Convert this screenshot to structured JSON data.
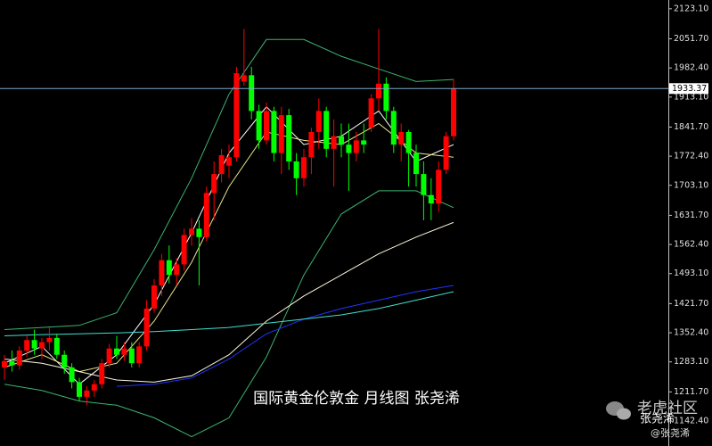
{
  "chart_data": {
    "type": "candlestick",
    "caption": "国际黄金伦敦金 月线图 张尧浠",
    "watermark": "老虎社区",
    "watermark_name": "张尧浠",
    "watermark_handle": "@张尧浠",
    "last_price": 1933.37,
    "up_color": "#ff0000",
    "down_color": "#00ff00",
    "ylim": [
      1083,
      2144
    ],
    "yticks": [
      {
        "value": 2123.1,
        "label": "2123.10"
      },
      {
        "value": 2051.7,
        "label": "2051.70"
      },
      {
        "value": 1982.4,
        "label": "1982.40"
      },
      {
        "value": 1913.1,
        "label": "1913.10"
      },
      {
        "value": 1841.7,
        "label": "1841.70"
      },
      {
        "value": 1772.4,
        "label": "1772.40"
      },
      {
        "value": 1703.1,
        "label": "1703.10"
      },
      {
        "value": 1631.7,
        "label": "1631.70"
      },
      {
        "value": 1562.4,
        "label": "1562.40"
      },
      {
        "value": 1493.1,
        "label": "1493.10"
      },
      {
        "value": 1421.7,
        "label": "1421.70"
      },
      {
        "value": 1352.4,
        "label": "1352.40"
      },
      {
        "value": 1283.1,
        "label": "1283.10"
      },
      {
        "value": 1211.7,
        "label": "1211.70"
      },
      {
        "value": 1142.4,
        "label": "1142.40"
      }
    ],
    "candles": [
      [
        1270,
        1300,
        1240,
        1285
      ],
      [
        1285,
        1310,
        1260,
        1275
      ],
      [
        1275,
        1320,
        1265,
        1310
      ],
      [
        1310,
        1345,
        1295,
        1335
      ],
      [
        1335,
        1360,
        1300,
        1315
      ],
      [
        1315,
        1340,
        1290,
        1330
      ],
      [
        1330,
        1365,
        1310,
        1340
      ],
      [
        1340,
        1350,
        1290,
        1300
      ],
      [
        1300,
        1310,
        1255,
        1270
      ],
      [
        1270,
        1280,
        1220,
        1235
      ],
      [
        1235,
        1245,
        1190,
        1200
      ],
      [
        1200,
        1225,
        1180,
        1215
      ],
      [
        1215,
        1240,
        1200,
        1230
      ],
      [
        1230,
        1290,
        1220,
        1280
      ],
      [
        1280,
        1325,
        1270,
        1315
      ],
      [
        1315,
        1345,
        1290,
        1300
      ],
      [
        1300,
        1330,
        1285,
        1315
      ],
      [
        1315,
        1330,
        1270,
        1280
      ],
      [
        1280,
        1330,
        1270,
        1320
      ],
      [
        1320,
        1430,
        1310,
        1410
      ],
      [
        1410,
        1480,
        1400,
        1465
      ],
      [
        1465,
        1540,
        1440,
        1525
      ],
      [
        1525,
        1560,
        1470,
        1490
      ],
      [
        1490,
        1530,
        1465,
        1515
      ],
      [
        1515,
        1600,
        1500,
        1585
      ],
      [
        1585,
        1625,
        1560,
        1600
      ],
      [
        1600,
        1620,
        1465,
        1580
      ],
      [
        1580,
        1700,
        1570,
        1685
      ],
      [
        1685,
        1760,
        1620,
        1730
      ],
      [
        1730,
        1790,
        1710,
        1775
      ],
      [
        1750,
        1800,
        1720,
        1770
      ],
      [
        1770,
        1985,
        1760,
        1970
      ],
      [
        1950,
        2075,
        1940,
        1965
      ],
      [
        1965,
        1985,
        1860,
        1880
      ],
      [
        1880,
        1895,
        1790,
        1810
      ],
      [
        1810,
        1900,
        1800,
        1880
      ],
      [
        1880,
        1890,
        1760,
        1780
      ],
      [
        1780,
        1890,
        1730,
        1870
      ],
      [
        1870,
        1885,
        1740,
        1760
      ],
      [
        1760,
        1780,
        1680,
        1720
      ],
      [
        1720,
        1790,
        1700,
        1770
      ],
      [
        1770,
        1840,
        1730,
        1830
      ],
      [
        1830,
        1910,
        1790,
        1880
      ],
      [
        1880,
        1890,
        1770,
        1790
      ],
      [
        1790,
        1860,
        1700,
        1820
      ],
      [
        1820,
        1850,
        1770,
        1800
      ],
      [
        1800,
        1850,
        1690,
        1780
      ],
      [
        1780,
        1830,
        1760,
        1810
      ],
      [
        1810,
        1850,
        1780,
        1800
      ],
      [
        1840,
        1920,
        1830,
        1910
      ],
      [
        1910,
        2075,
        1880,
        1945
      ],
      [
        1945,
        1960,
        1860,
        1880
      ],
      [
        1880,
        1890,
        1780,
        1800
      ],
      [
        1800,
        1850,
        1760,
        1830
      ],
      [
        1830,
        1835,
        1700,
        1780
      ],
      [
        1780,
        1800,
        1700,
        1730
      ],
      [
        1730,
        1760,
        1620,
        1680
      ],
      [
        1680,
        1720,
        1620,
        1660
      ],
      [
        1660,
        1760,
        1640,
        1740
      ],
      [
        1740,
        1830,
        1730,
        1820
      ],
      [
        1820,
        1955,
        1810,
        1933.37
      ]
    ],
    "overlays": [
      {
        "color": "#3cb371",
        "x": [
          0,
          5,
          10,
          15,
          20,
          25,
          30,
          35,
          40,
          45,
          50,
          55,
          60
        ],
        "values": [
          1360,
          1365,
          1370,
          1400,
          1550,
          1720,
          1920,
          2050,
          2050,
          2010,
          1980,
          1950,
          1955
        ]
      },
      {
        "color": "#3cb371",
        "x": [
          0,
          5,
          10,
          15,
          20,
          25,
          30,
          35,
          40,
          45,
          50,
          55,
          60
        ],
        "values": [
          1230,
          1215,
          1190,
          1180,
          1150,
          1105,
          1150,
          1295,
          1490,
          1635,
          1690,
          1690,
          1650
        ]
      },
      {
        "color": "#ffffff",
        "x": [
          0,
          5,
          10,
          15,
          20,
          25,
          30,
          35,
          40,
          45,
          50,
          55,
          60
        ],
        "values": [
          1280,
          1320,
          1230,
          1300,
          1420,
          1590,
          1780,
          1890,
          1800,
          1820,
          1880,
          1760,
          1800
        ]
      },
      {
        "color": "#f0e68c",
        "x": [
          0,
          5,
          10,
          15,
          20,
          25,
          30,
          35,
          40,
          45,
          50,
          55,
          60
        ],
        "values": [
          1270,
          1300,
          1260,
          1280,
          1380,
          1520,
          1700,
          1830,
          1810,
          1800,
          1850,
          1780,
          1770
        ]
      },
      {
        "color": "#fff8dc",
        "x": [
          0,
          5,
          10,
          15,
          20,
          25,
          30,
          35,
          40,
          45,
          50,
          55,
          60
        ],
        "values": [
          1290,
          1280,
          1260,
          1240,
          1235,
          1250,
          1300,
          1380,
          1440,
          1490,
          1540,
          1580,
          1615
        ]
      },
      {
        "color": "#2233ff",
        "x": [
          0,
          5,
          10,
          15,
          20,
          25,
          30,
          35,
          40,
          45,
          50,
          55,
          60
        ],
        "values": [
          null,
          null,
          null,
          1225,
          1230,
          1245,
          1290,
          1350,
          1385,
          1410,
          1430,
          1450,
          1465
        ]
      },
      {
        "color": "#40e0d0",
        "x": [
          0,
          5,
          10,
          15,
          20,
          25,
          30,
          35,
          40,
          45,
          50,
          55,
          60
        ],
        "values": [
          1345,
          1348,
          1350,
          1352,
          1355,
          1360,
          1365,
          1375,
          1385,
          1395,
          1410,
          1430,
          1450
        ]
      }
    ]
  }
}
